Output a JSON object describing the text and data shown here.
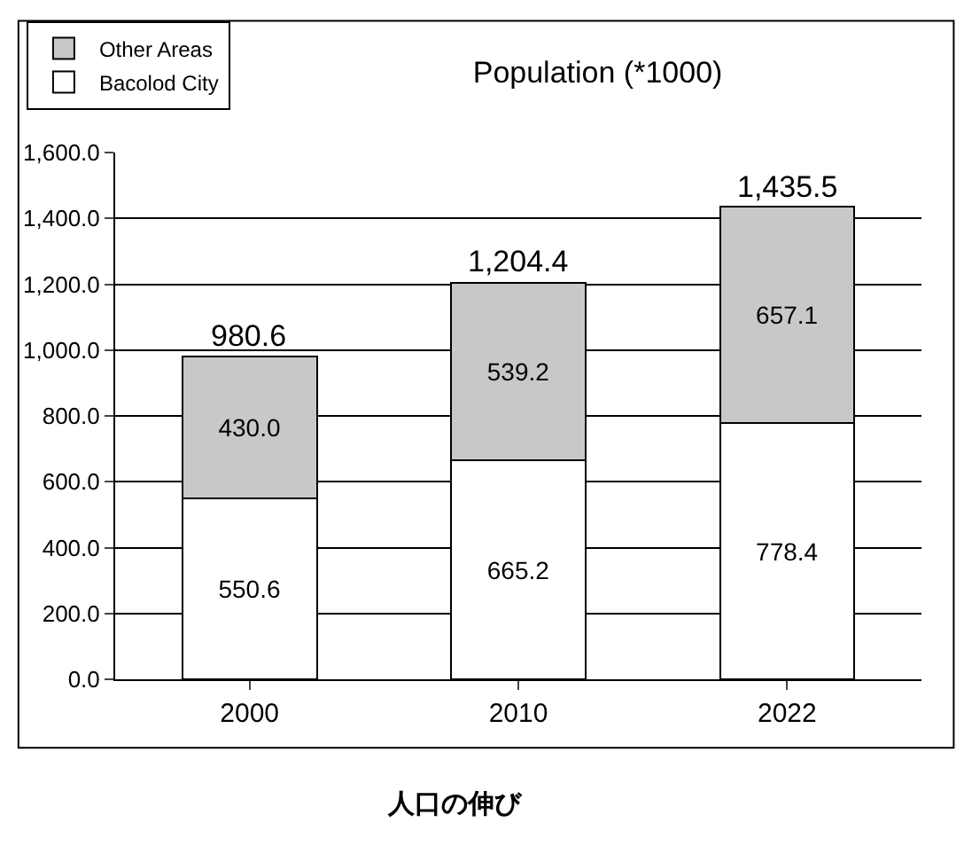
{
  "chart_data": {
    "type": "bar",
    "stacked": true,
    "title": "Population (*1000)",
    "categories": [
      "2000",
      "2010",
      "2022"
    ],
    "series": [
      {
        "name": "Bacolod City",
        "color": "#ffffff",
        "values": [
          550.6,
          665.2,
          778.4
        ],
        "value_labels": [
          "550.6",
          "665.2",
          "778.4"
        ]
      },
      {
        "name": "Other Areas",
        "color": "#c8c8c8",
        "values": [
          430.0,
          539.2,
          657.1
        ],
        "value_labels": [
          "430.0",
          "539.2",
          "657.1"
        ]
      }
    ],
    "totals": [
      "980.6",
      "1,204.4",
      "1,435.5"
    ],
    "ylim": [
      0,
      1600
    ],
    "yticks": [
      {
        "value": 0,
        "label": "0.0"
      },
      {
        "value": 200,
        "label": "200.0"
      },
      {
        "value": 400,
        "label": "400.0"
      },
      {
        "value": 600,
        "label": "600.0"
      },
      {
        "value": 800,
        "label": "800.0"
      },
      {
        "value": 1000,
        "label": "1,000.0"
      },
      {
        "value": 1200,
        "label": "1,200.0"
      },
      {
        "value": 1400,
        "label": "1,400.0"
      },
      {
        "value": 1600,
        "label": "1,600.0"
      }
    ],
    "grid": "y",
    "legend": "top left",
    "annotations": [
      "人口の伸び"
    ]
  }
}
